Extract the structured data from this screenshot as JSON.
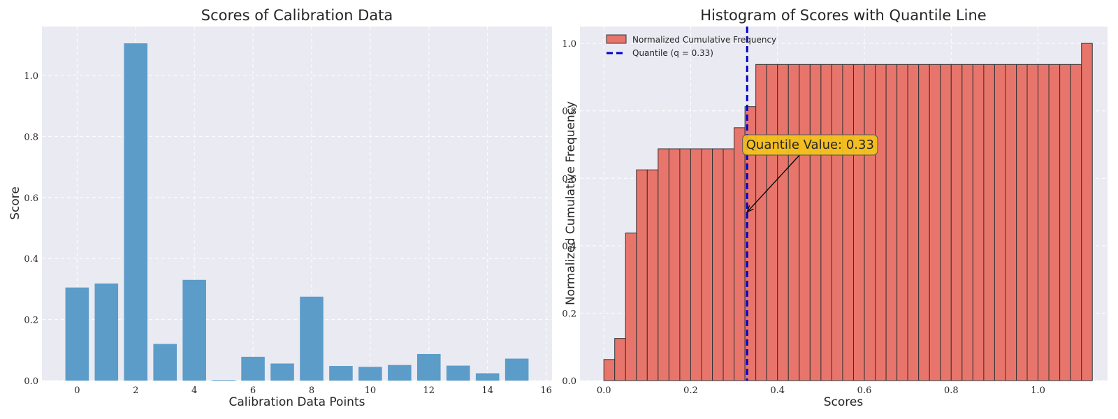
{
  "chart_data": [
    {
      "type": "bar",
      "title": "Scores of Calibration Data",
      "xlabel": "Calibration Data Points",
      "ylabel": "Score",
      "x": [
        0,
        1,
        2,
        3,
        4,
        5,
        6,
        7,
        8,
        9,
        10,
        11,
        12,
        13,
        14,
        15
      ],
      "values": [
        0.305,
        0.318,
        1.105,
        0.12,
        0.33,
        0.002,
        0.078,
        0.056,
        0.275,
        0.048,
        0.045,
        0.051,
        0.087,
        0.049,
        0.024,
        0.072
      ],
      "xlim": [
        -1.2,
        16.2
      ],
      "ylim": [
        0,
        1.16
      ],
      "xticks": [
        0,
        2,
        4,
        6,
        8,
        10,
        12,
        14,
        16
      ],
      "xtick_labels": [
        "0",
        "2",
        "4",
        "6",
        "8",
        "10",
        "12",
        "14",
        "16"
      ],
      "yticks": [
        0,
        0.2,
        0.4,
        0.6,
        0.8,
        1.0
      ],
      "ytick_labels": [
        "0.0",
        "0.2",
        "0.4",
        "0.6",
        "0.8",
        "1.0"
      ],
      "grid": true,
      "color": "#5b9cc9"
    },
    {
      "type": "bar",
      "title": "Histogram of Scores with Quantile Line",
      "xlabel": "Scores",
      "ylabel": "Normalized Cumulative Frequency",
      "bins_start": 0.0,
      "bin_width": 0.025,
      "values": [
        0.0625,
        0.125,
        0.4375,
        0.625,
        0.625,
        0.6875,
        0.6875,
        0.6875,
        0.6875,
        0.6875,
        0.6875,
        0.6875,
        0.75,
        0.8125,
        0.9375,
        0.9375,
        0.9375,
        0.9375,
        0.9375,
        0.9375,
        0.9375,
        0.9375,
        0.9375,
        0.9375,
        0.9375,
        0.9375,
        0.9375,
        0.9375,
        0.9375,
        0.9375,
        0.9375,
        0.9375,
        0.9375,
        0.9375,
        0.9375,
        0.9375,
        0.9375,
        0.9375,
        0.9375,
        0.9375,
        0.9375,
        0.9375,
        0.9375,
        0.9375,
        1.0
      ],
      "xlim": [
        -0.055,
        1.16
      ],
      "ylim": [
        0,
        1.05
      ],
      "xticks": [
        0,
        0.2,
        0.4,
        0.6,
        0.8,
        1.0
      ],
      "xtick_labels": [
        "0.0",
        "0.2",
        "0.4",
        "0.6",
        "0.8",
        "1.0"
      ],
      "yticks": [
        0,
        0.2,
        0.4,
        0.6,
        0.8,
        1.0
      ],
      "ytick_labels": [
        "0.0",
        "0.2",
        "0.4",
        "0.6",
        "0.8",
        "1.0"
      ],
      "grid": true,
      "color": "#e8756b",
      "edge_color": "#333333",
      "quantile": {
        "value": 0.33,
        "color": "#0000cc",
        "legend_label": "Quantile (q = 0.33)"
      },
      "legend": {
        "placement": "top-left",
        "entries": [
          "Normalized Cumulative Frequency",
          "Quantile (q = 0.33)"
        ]
      },
      "annotation": {
        "text": "Quantile Value: 0.33",
        "point": [
          0.33,
          0.5
        ],
        "text_at": [
          0.475,
          0.7
        ],
        "box_color": "#f5c518"
      }
    }
  ]
}
